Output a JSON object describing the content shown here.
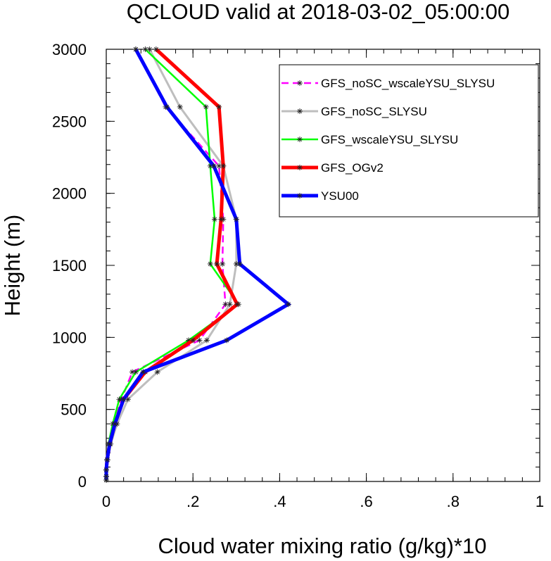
{
  "chart_data": {
    "type": "line",
    "title": "QCLOUD valid at 2018-03-02_05:00:00",
    "xlabel": "Cloud water mixing ratio (g/kg)*10",
    "ylabel": "Height (m)",
    "xlim": [
      0,
      1
    ],
    "ylim": [
      0,
      3000
    ],
    "x_ticks": [
      {
        "value": 0,
        "label": "0"
      },
      {
        "value": 0.2,
        "label": ".2"
      },
      {
        "value": 0.4,
        "label": ".4"
      },
      {
        "value": 0.6,
        "label": ".6"
      },
      {
        "value": 0.8,
        "label": ".8"
      },
      {
        "value": 1,
        "label": "1"
      }
    ],
    "y_ticks": [
      {
        "value": 0,
        "label": "0"
      },
      {
        "value": 500,
        "label": "500"
      },
      {
        "value": 1000,
        "label": "1000"
      },
      {
        "value": 1500,
        "label": "1500"
      },
      {
        "value": 2000,
        "label": "2000"
      },
      {
        "value": 2500,
        "label": "2500"
      },
      {
        "value": 3000,
        "label": "3000"
      }
    ],
    "grid": false,
    "legend": "top-right",
    "series": [
      {
        "name": "GFS_noSC_wscaleYSU_SLYSU",
        "color": "#ff00ff",
        "dash": "dashed",
        "width": 2.5,
        "points": [
          [
            0.0,
            10
          ],
          [
            0.0,
            35
          ],
          [
            0.0,
            80
          ],
          [
            0.002,
            150
          ],
          [
            0.005,
            260
          ],
          [
            0.018,
            400
          ],
          [
            0.035,
            570
          ],
          [
            0.06,
            760
          ],
          [
            0.215,
            980
          ],
          [
            0.275,
            1230
          ],
          [
            0.268,
            1510
          ],
          [
            0.27,
            1820
          ],
          [
            0.26,
            2190
          ],
          [
            0.137,
            2600
          ],
          [
            0.068,
            3000
          ]
        ]
      },
      {
        "name": "GFS_noSC_SLYSU",
        "color": "#bebebe",
        "dash": "solid",
        "width": 3,
        "points": [
          [
            0.0,
            10
          ],
          [
            0.0,
            35
          ],
          [
            0.0,
            80
          ],
          [
            0.003,
            150
          ],
          [
            0.01,
            260
          ],
          [
            0.025,
            400
          ],
          [
            0.05,
            570
          ],
          [
            0.118,
            760
          ],
          [
            0.232,
            980
          ],
          [
            0.285,
            1230
          ],
          [
            0.3,
            1510
          ],
          [
            0.3,
            1820
          ],
          [
            0.27,
            2190
          ],
          [
            0.17,
            2600
          ],
          [
            0.1,
            3000
          ]
        ]
      },
      {
        "name": "GFS_wscaleYSU_SLYSU",
        "color": "#00ff00",
        "dash": "solid",
        "width": 2.5,
        "points": [
          [
            0.0,
            10
          ],
          [
            0.0,
            35
          ],
          [
            0.0,
            80
          ],
          [
            0.002,
            150
          ],
          [
            0.005,
            260
          ],
          [
            0.015,
            400
          ],
          [
            0.03,
            570
          ],
          [
            0.068,
            760
          ],
          [
            0.19,
            980
          ],
          [
            0.305,
            1230
          ],
          [
            0.24,
            1510
          ],
          [
            0.25,
            1820
          ],
          [
            0.24,
            2190
          ],
          [
            0.23,
            2600
          ],
          [
            0.09,
            3000
          ]
        ]
      },
      {
        "name": "GFS_OGv2",
        "color": "#ff0000",
        "dash": "solid",
        "width": 5,
        "points": [
          [
            0.0,
            10
          ],
          [
            0.0,
            35
          ],
          [
            0.0,
            80
          ],
          [
            0.002,
            150
          ],
          [
            0.008,
            260
          ],
          [
            0.02,
            400
          ],
          [
            0.04,
            570
          ],
          [
            0.09,
            760
          ],
          [
            0.2,
            980
          ],
          [
            0.302,
            1230
          ],
          [
            0.255,
            1510
          ],
          [
            0.265,
            1820
          ],
          [
            0.27,
            2190
          ],
          [
            0.26,
            2600
          ],
          [
            0.115,
            3000
          ]
        ]
      },
      {
        "name": "YSU00",
        "color": "#0000ff",
        "dash": "solid",
        "width": 5,
        "points": [
          [
            0.0,
            10
          ],
          [
            0.0,
            35
          ],
          [
            0.0,
            80
          ],
          [
            0.002,
            150
          ],
          [
            0.008,
            260
          ],
          [
            0.02,
            400
          ],
          [
            0.04,
            570
          ],
          [
            0.085,
            760
          ],
          [
            0.278,
            980
          ],
          [
            0.42,
            1230
          ],
          [
            0.308,
            1510
          ],
          [
            0.3,
            1820
          ],
          [
            0.248,
            2190
          ],
          [
            0.14,
            2600
          ],
          [
            0.068,
            3000
          ]
        ]
      }
    ]
  }
}
